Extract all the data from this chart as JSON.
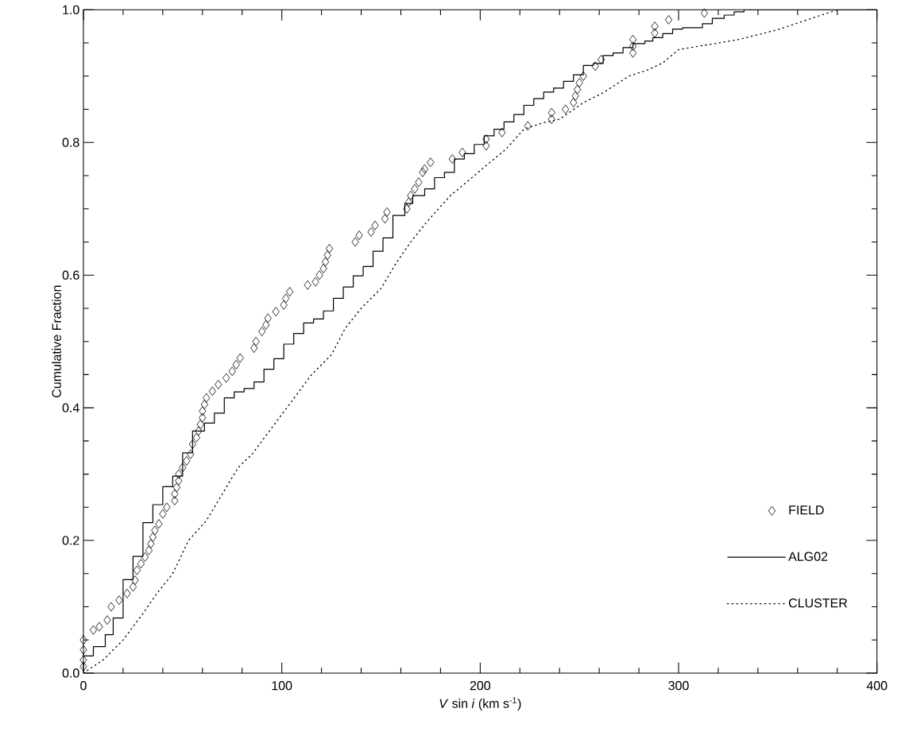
{
  "chart_data": {
    "type": "line",
    "xlabel": "*V* sin *i* (km s$^{-1}$)",
    "ylabel": "Cumulative Fraction",
    "xlim": [
      0,
      400
    ],
    "ylim": [
      0,
      1.0
    ],
    "xticks": [
      0,
      100,
      200,
      300,
      400
    ],
    "yticks": [
      {
        "value": 0,
        "label": "0.0"
      },
      {
        "value": 0.2,
        "label": "0.2"
      },
      {
        "value": 0.4,
        "label": "0.4"
      },
      {
        "value": 0.6,
        "label": "0.6"
      },
      {
        "value": 0.8,
        "label": "0.8"
      },
      {
        "value": 1.0,
        "label": "1.0"
      }
    ],
    "grid": false,
    "legend": "bottom right",
    "series": [
      {
        "name": "FIELD",
        "type": "scatter",
        "marker": "diamond",
        "color": "#000000",
        "x": [
          0,
          0,
          0,
          0,
          5,
          8,
          12,
          14,
          18,
          22,
          25,
          26,
          27,
          29,
          31,
          33,
          34,
          35,
          36,
          38,
          40,
          42,
          46,
          46,
          47,
          48,
          48,
          50,
          52,
          54,
          55,
          57,
          58,
          59,
          60,
          60,
          61,
          62,
          65,
          68,
          72,
          75,
          77,
          79,
          86,
          87,
          90,
          92,
          93,
          97,
          101,
          102,
          104,
          113,
          117,
          119,
          121,
          122,
          123,
          124,
          137,
          139,
          145,
          147,
          152,
          153,
          163,
          164,
          165,
          167,
          169,
          171,
          172,
          175,
          186,
          191,
          203,
          203,
          211,
          224,
          236,
          236,
          243,
          247,
          248,
          249,
          250,
          252,
          258,
          261,
          277,
          277,
          277,
          288,
          288,
          295,
          313
        ],
        "values": [
          0.01,
          0.02,
          0.035,
          0.05,
          0.065,
          0.07,
          0.08,
          0.1,
          0.11,
          0.12,
          0.13,
          0.14,
          0.155,
          0.165,
          0.175,
          0.185,
          0.195,
          0.205,
          0.215,
          0.225,
          0.24,
          0.25,
          0.26,
          0.27,
          0.28,
          0.29,
          0.3,
          0.31,
          0.32,
          0.33,
          0.345,
          0.355,
          0.365,
          0.375,
          0.385,
          0.395,
          0.405,
          0.415,
          0.425,
          0.435,
          0.445,
          0.455,
          0.465,
          0.475,
          0.49,
          0.5,
          0.515,
          0.525,
          0.535,
          0.545,
          0.555,
          0.565,
          0.575,
          0.585,
          0.59,
          0.6,
          0.61,
          0.62,
          0.63,
          0.64,
          0.65,
          0.66,
          0.665,
          0.675,
          0.685,
          0.695,
          0.7,
          0.71,
          0.72,
          0.73,
          0.74,
          0.755,
          0.76,
          0.77,
          0.775,
          0.785,
          0.795,
          0.805,
          0.815,
          0.825,
          0.835,
          0.845,
          0.85,
          0.86,
          0.87,
          0.88,
          0.89,
          0.9,
          0.915,
          0.925,
          0.935,
          0.945,
          0.955,
          0.965,
          0.975,
          0.985,
          0.995
        ]
      },
      {
        "name": "ALG02",
        "type": "step",
        "line_style": "solid",
        "color": "#000000",
        "x": [
          0,
          5,
          11,
          15,
          20,
          25,
          30,
          35,
          40,
          45,
          50,
          55,
          61,
          66,
          71,
          76,
          81,
          86,
          91,
          96,
          101,
          106,
          111,
          116,
          121,
          126,
          131,
          136,
          141,
          146,
          151,
          156,
          162,
          166,
          172,
          177,
          182,
          187,
          192,
          197,
          202,
          207,
          212,
          217,
          222,
          227,
          232,
          237,
          242,
          247,
          252,
          257,
          262,
          267,
          272,
          277,
          283,
          287,
          292,
          297,
          302,
          312,
          317,
          323,
          328,
          333,
          400
        ],
        "values": [
          0.026,
          0.04,
          0.058,
          0.083,
          0.141,
          0.176,
          0.227,
          0.254,
          0.281,
          0.297,
          0.332,
          0.365,
          0.377,
          0.392,
          0.415,
          0.424,
          0.429,
          0.439,
          0.458,
          0.474,
          0.496,
          0.512,
          0.528,
          0.534,
          0.546,
          0.565,
          0.582,
          0.599,
          0.613,
          0.636,
          0.656,
          0.69,
          0.708,
          0.72,
          0.73,
          0.747,
          0.755,
          0.775,
          0.783,
          0.797,
          0.81,
          0.82,
          0.831,
          0.842,
          0.856,
          0.866,
          0.876,
          0.882,
          0.892,
          0.902,
          0.916,
          0.919,
          0.931,
          0.935,
          0.943,
          0.949,
          0.953,
          0.958,
          0.964,
          0.971,
          0.973,
          0.979,
          0.987,
          0.992,
          0.997,
          1.0,
          1.0
        ]
      },
      {
        "name": "CLUSTER",
        "line_style": "dotted",
        "color": "#000000",
        "x": [
          0,
          10,
          20,
          30,
          37,
          45,
          53,
          62,
          70,
          78,
          85,
          95,
          105,
          115,
          125,
          132,
          140,
          150,
          158,
          165,
          173,
          185,
          197,
          205,
          213,
          222,
          232,
          240,
          252,
          262,
          275,
          285,
          292,
          300,
          310,
          330,
          350,
          360,
          370,
          380,
          400
        ],
        "values": [
          0,
          0.02,
          0.05,
          0.09,
          0.12,
          0.15,
          0.2,
          0.23,
          0.27,
          0.31,
          0.33,
          0.37,
          0.41,
          0.45,
          0.48,
          0.52,
          0.55,
          0.58,
          0.62,
          0.65,
          0.68,
          0.72,
          0.75,
          0.77,
          0.79,
          0.82,
          0.83,
          0.835,
          0.86,
          0.875,
          0.9,
          0.91,
          0.92,
          0.94,
          0.945,
          0.955,
          0.97,
          0.98,
          0.99,
          1.0,
          1.0
        ]
      }
    ]
  }
}
